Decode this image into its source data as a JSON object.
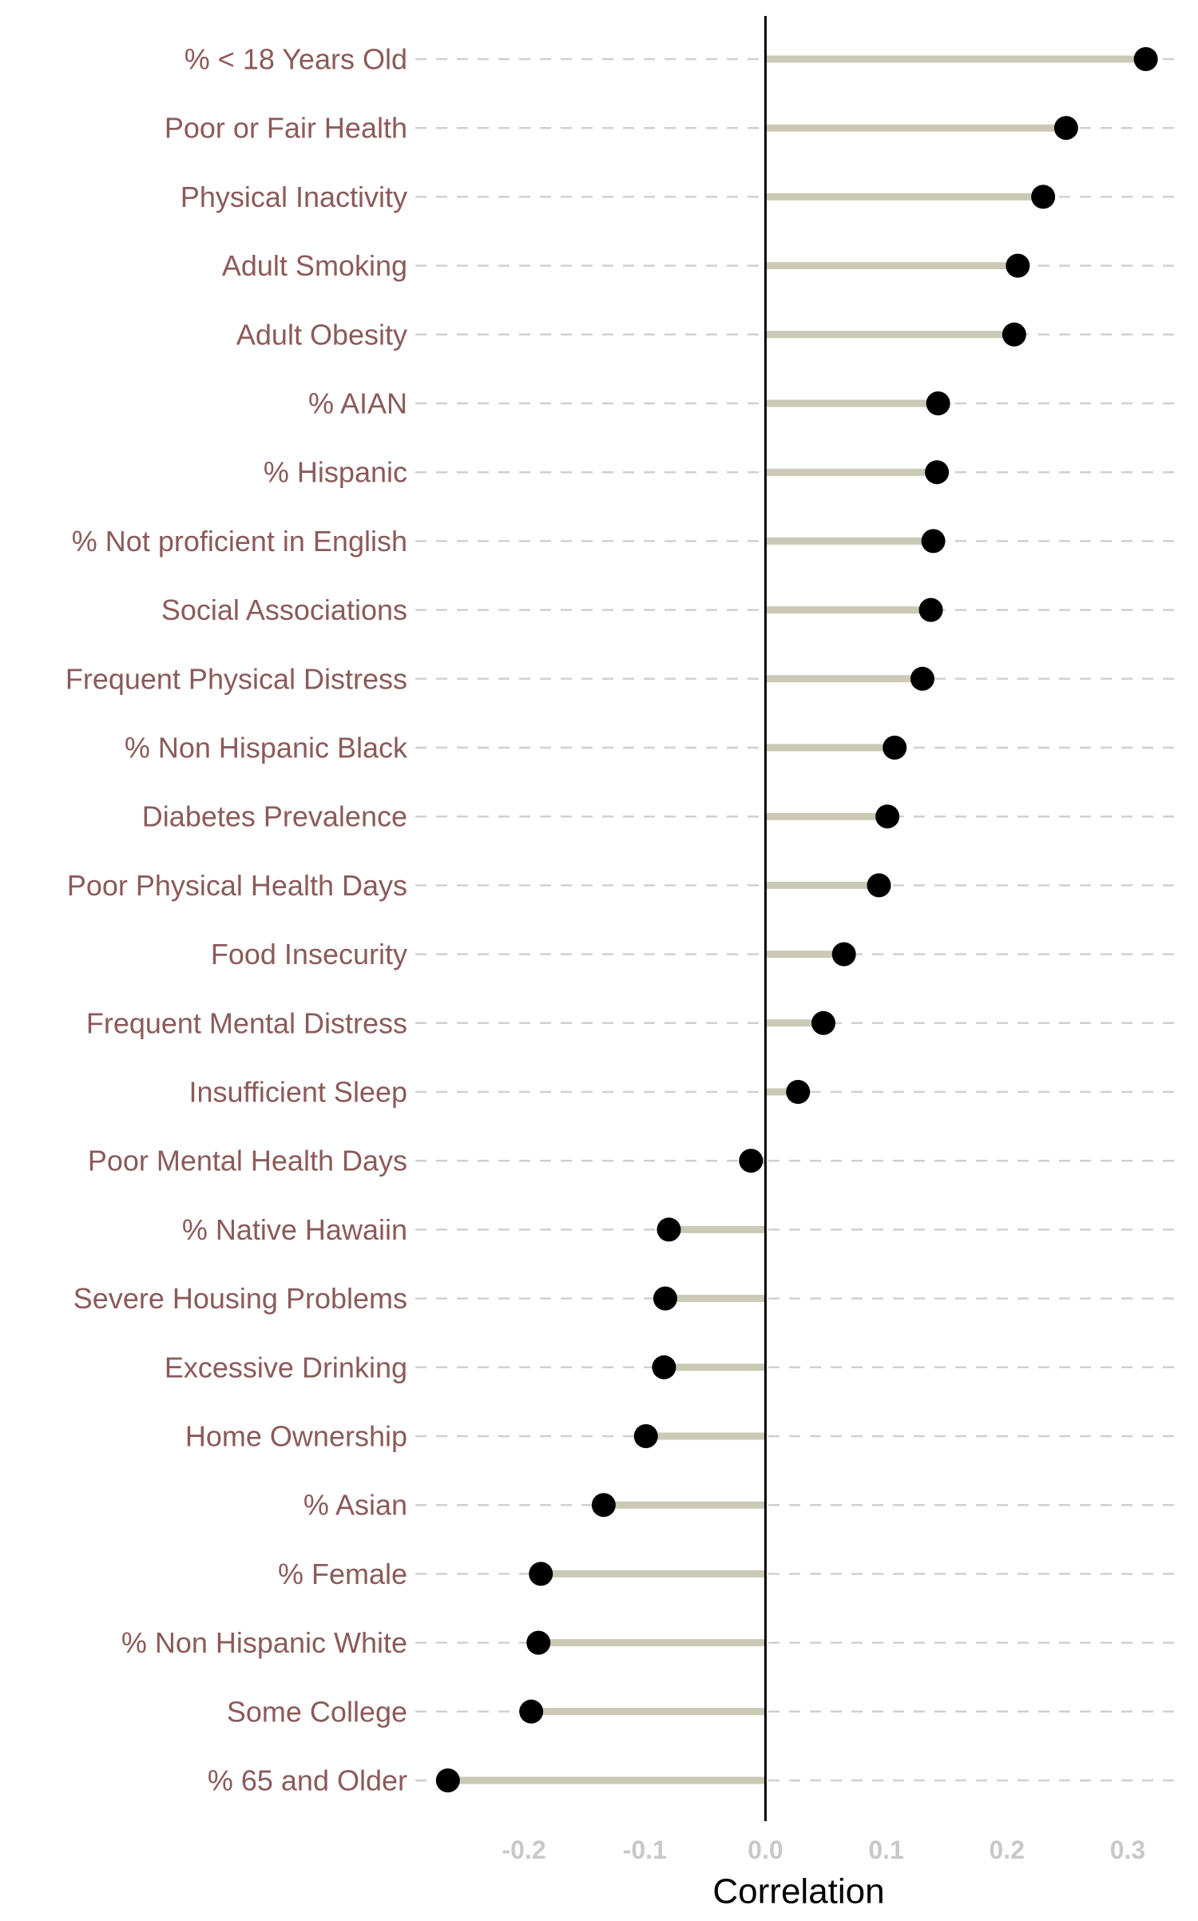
{
  "chart_data": {
    "type": "lollipop",
    "categories": [
      "% < 18 Years Old",
      "Poor or Fair Health",
      "Physical Inactivity",
      "Adult Smoking",
      "Adult Obesity",
      "% AIAN",
      "% Hispanic",
      "% Not proficient in English",
      "Social Associations",
      "Frequent Physical Distress",
      "% Non Hispanic Black",
      "Diabetes Prevalence",
      "Poor Physical Health Days",
      "Food Insecurity",
      "Frequent Mental Distress",
      "Insufficient Sleep",
      "Poor Mental Health Days",
      "% Native Hawaiin",
      "Severe Housing Problems",
      "Excessive Drinking",
      "Home Ownership",
      "% Asian",
      "% Female",
      "% Non Hispanic White",
      "Some College",
      "% 65 and Older"
    ],
    "values": [
      0.315,
      0.249,
      0.23,
      0.209,
      0.206,
      0.143,
      0.142,
      0.139,
      0.137,
      0.13,
      0.107,
      0.101,
      0.094,
      0.065,
      0.048,
      0.027,
      -0.012,
      -0.08,
      -0.083,
      -0.084,
      -0.099,
      -0.134,
      -0.186,
      -0.188,
      -0.194,
      -0.263
    ],
    "xlabel": "Correlation",
    "ylabel": "",
    "xlim": [
      -0.29,
      0.345
    ],
    "xticks": [
      -0.2,
      -0.1,
      0.0,
      0.1,
      0.2,
      0.3
    ],
    "xtick_labels": [
      "-0.2",
      "-0.1",
      "0.0",
      "0.1",
      "0.2",
      "0.3"
    ],
    "grid": "horizontal dashed",
    "colors": {
      "stem": "#c9c9b6",
      "point": "#000000",
      "category_label": "#8b5a5a",
      "tick_label": "#c8c8c8",
      "grid": "#d0d0d0",
      "zero_line": "#000000"
    }
  }
}
